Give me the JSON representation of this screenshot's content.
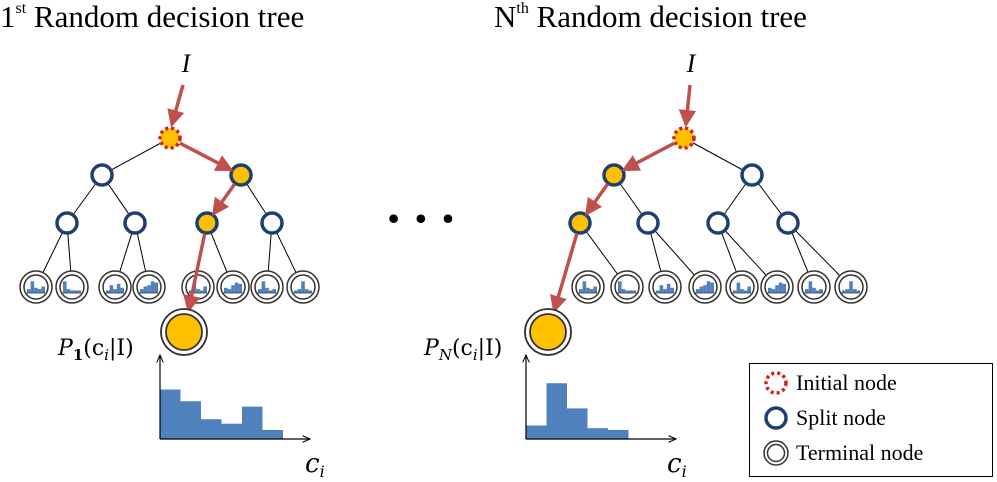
{
  "trees": [
    {
      "title_prefix": "1",
      "title_sup": "st",
      "title_rest": " Random decision tree",
      "input_label": "I",
      "prob_p": "P",
      "prob_sub": "1",
      "prob_rest": "(c",
      "prob_i": "i",
      "prob_bar": "|I)",
      "axis_x_label": "c",
      "axis_x_sub": "i",
      "path": [
        0,
        2,
        5,
        11
      ],
      "histogram": [
        0.55,
        0.42,
        0.22,
        0.17,
        0.36,
        0.1
      ]
    },
    {
      "title_prefix": "N",
      "title_sup": "th",
      "title_rest": " Random decision tree",
      "input_label": "I",
      "prob_p": "P",
      "prob_sub": "N",
      "prob_rest": "(c",
      "prob_i": "i",
      "prob_bar": "|I)",
      "axis_x_label": "c",
      "axis_x_sub": "i",
      "path": [
        0,
        1,
        3,
        7
      ],
      "histogram": [
        0.15,
        0.62,
        0.34,
        0.12,
        0.1,
        0.0
      ]
    }
  ],
  "ellipsis": "• • •",
  "legend": {
    "items": [
      {
        "label": "Initial node",
        "icon": "initial-node-icon"
      },
      {
        "label": "Split node",
        "icon": "split-node-icon"
      },
      {
        "label": "Terminal node",
        "icon": "terminal-node-icon"
      }
    ]
  },
  "colors": {
    "split_stroke": "#1f3f73",
    "highlight_fill": "#ffc000",
    "initial_stroke": "#d12020",
    "path_arrow": "#c0504d",
    "histogram_fill": "#4f81bd",
    "edge": "#000000"
  }
}
